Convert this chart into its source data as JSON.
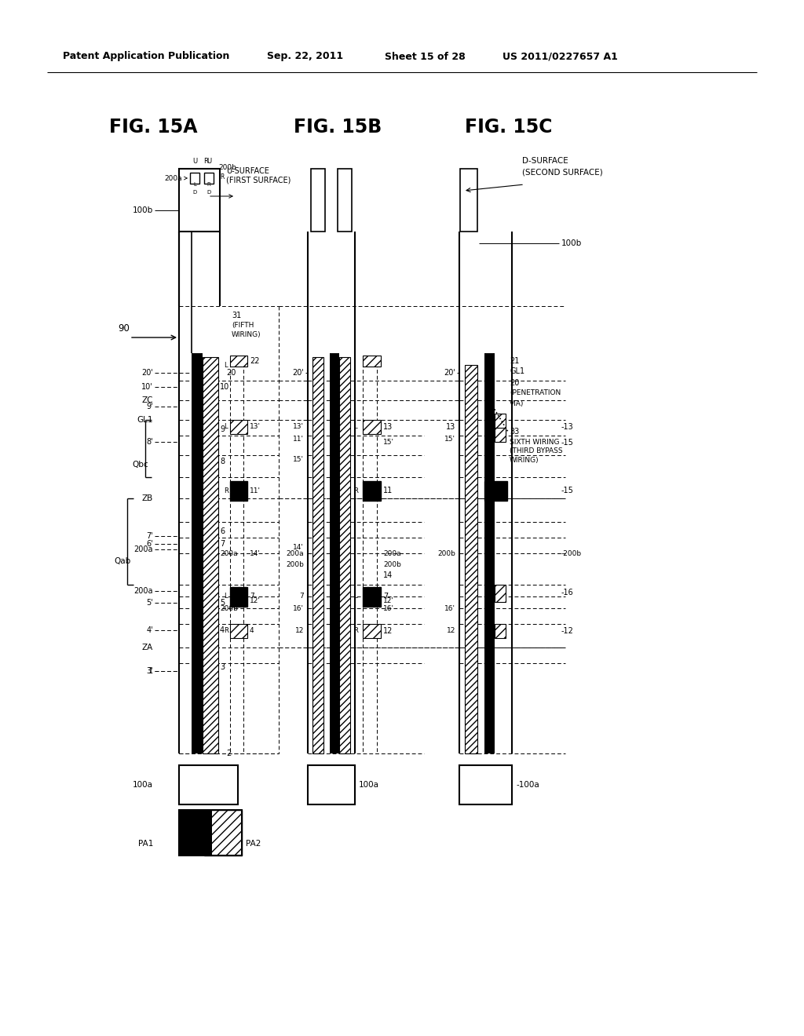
{
  "bg_color": "#ffffff",
  "header_left": "Patent Application Publication",
  "header_mid": "Sep. 22, 2011  Sheet 15 of 28",
  "header_right": "US 2011/0227657 A1"
}
